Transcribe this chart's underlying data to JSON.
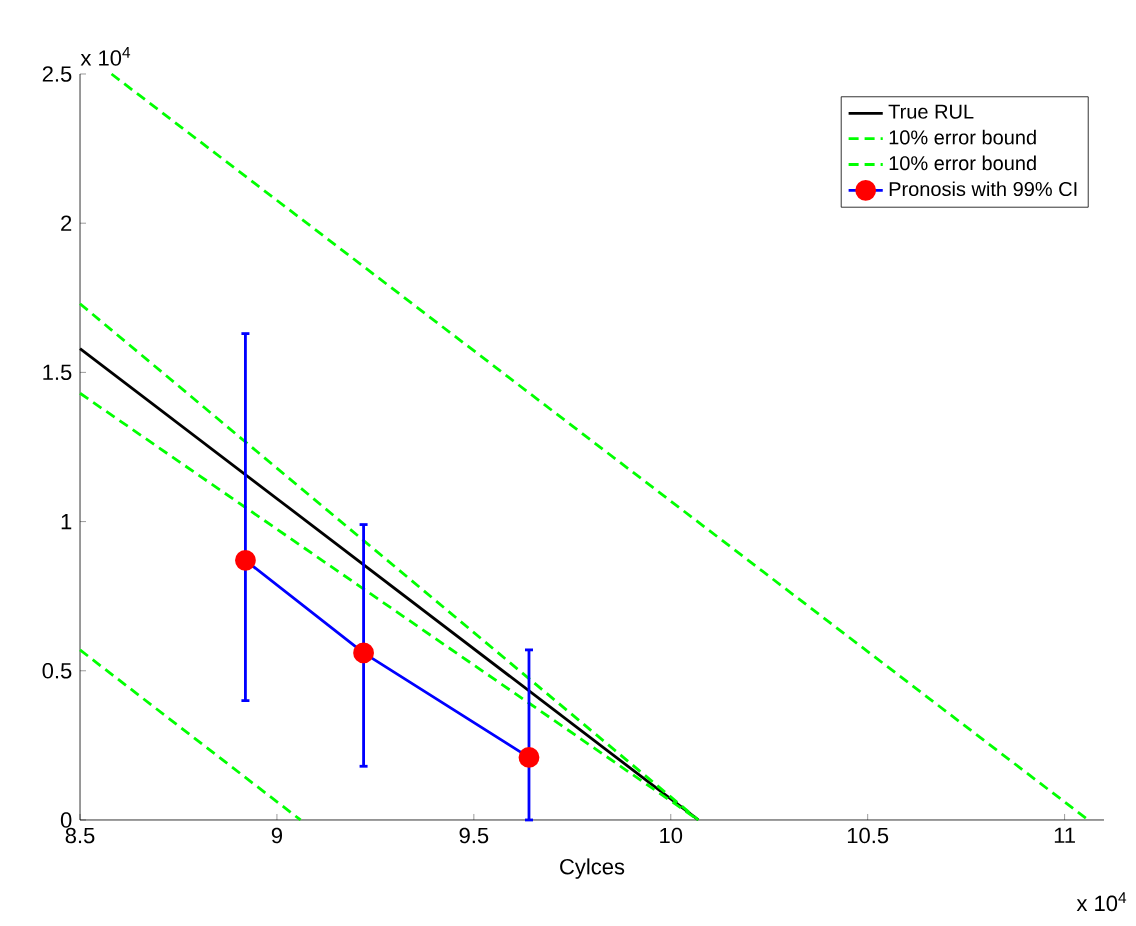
{
  "chart_data": {
    "type": "line",
    "xlabel": "Cylces",
    "annotations": [
      "x 10$^{4}$",
      "x 10$^{4}$"
    ],
    "xlim": [
      8.5,
      11.1
    ],
    "ylim": [
      0,
      2.5
    ],
    "xticks": [
      8.5,
      9,
      9.5,
      10,
      10.5,
      11
    ],
    "yticks": [
      0,
      0.5,
      1,
      1.5,
      2,
      2.5
    ],
    "grid": false,
    "legend": "top right",
    "series": [
      {
        "name": "True RUL",
        "color": "#000000",
        "line_style": "solid",
        "marker": "none",
        "x": [
          8.5,
          10.07
        ],
        "values": [
          1.58,
          0
        ]
      },
      {
        "name": "10% error bound",
        "color": "#00ff00",
        "line_style": "dashed",
        "marker": "none",
        "x": [
          8.5,
          10.07
        ],
        "values": [
          1.73,
          0
        ]
      },
      {
        "name": "10% error bound",
        "color": "#00ff00",
        "line_style": "dashed",
        "marker": "none",
        "x": [
          8.5,
          10.07
        ],
        "values": [
          1.43,
          0
        ]
      },
      {
        "name": "Pronosis with 99% CI",
        "color": "#0000ff",
        "colors": [
          "#ff0000",
          "#ff0000",
          "#ff0000"
        ],
        "line_style": "solid",
        "marker": "circle",
        "x": [
          8.92,
          9.22,
          9.64
        ],
        "values": [
          0.87,
          0.56,
          0.21
        ],
        "errors": [
          [
            0.4,
            1.63
          ],
          [
            0.18,
            0.99
          ],
          [
            0,
            0.57
          ]
        ]
      },
      {
        "color": "#00ff00",
        "line_style": "dashed",
        "marker": "none",
        "x": [
          8.58,
          11.06
        ],
        "values": [
          2.5,
          0
        ]
      },
      {
        "color": "#00ff00",
        "line_style": "dashed",
        "marker": "none",
        "x": [
          8.5,
          9.06
        ],
        "values": [
          0.57,
          0
        ]
      }
    ]
  }
}
